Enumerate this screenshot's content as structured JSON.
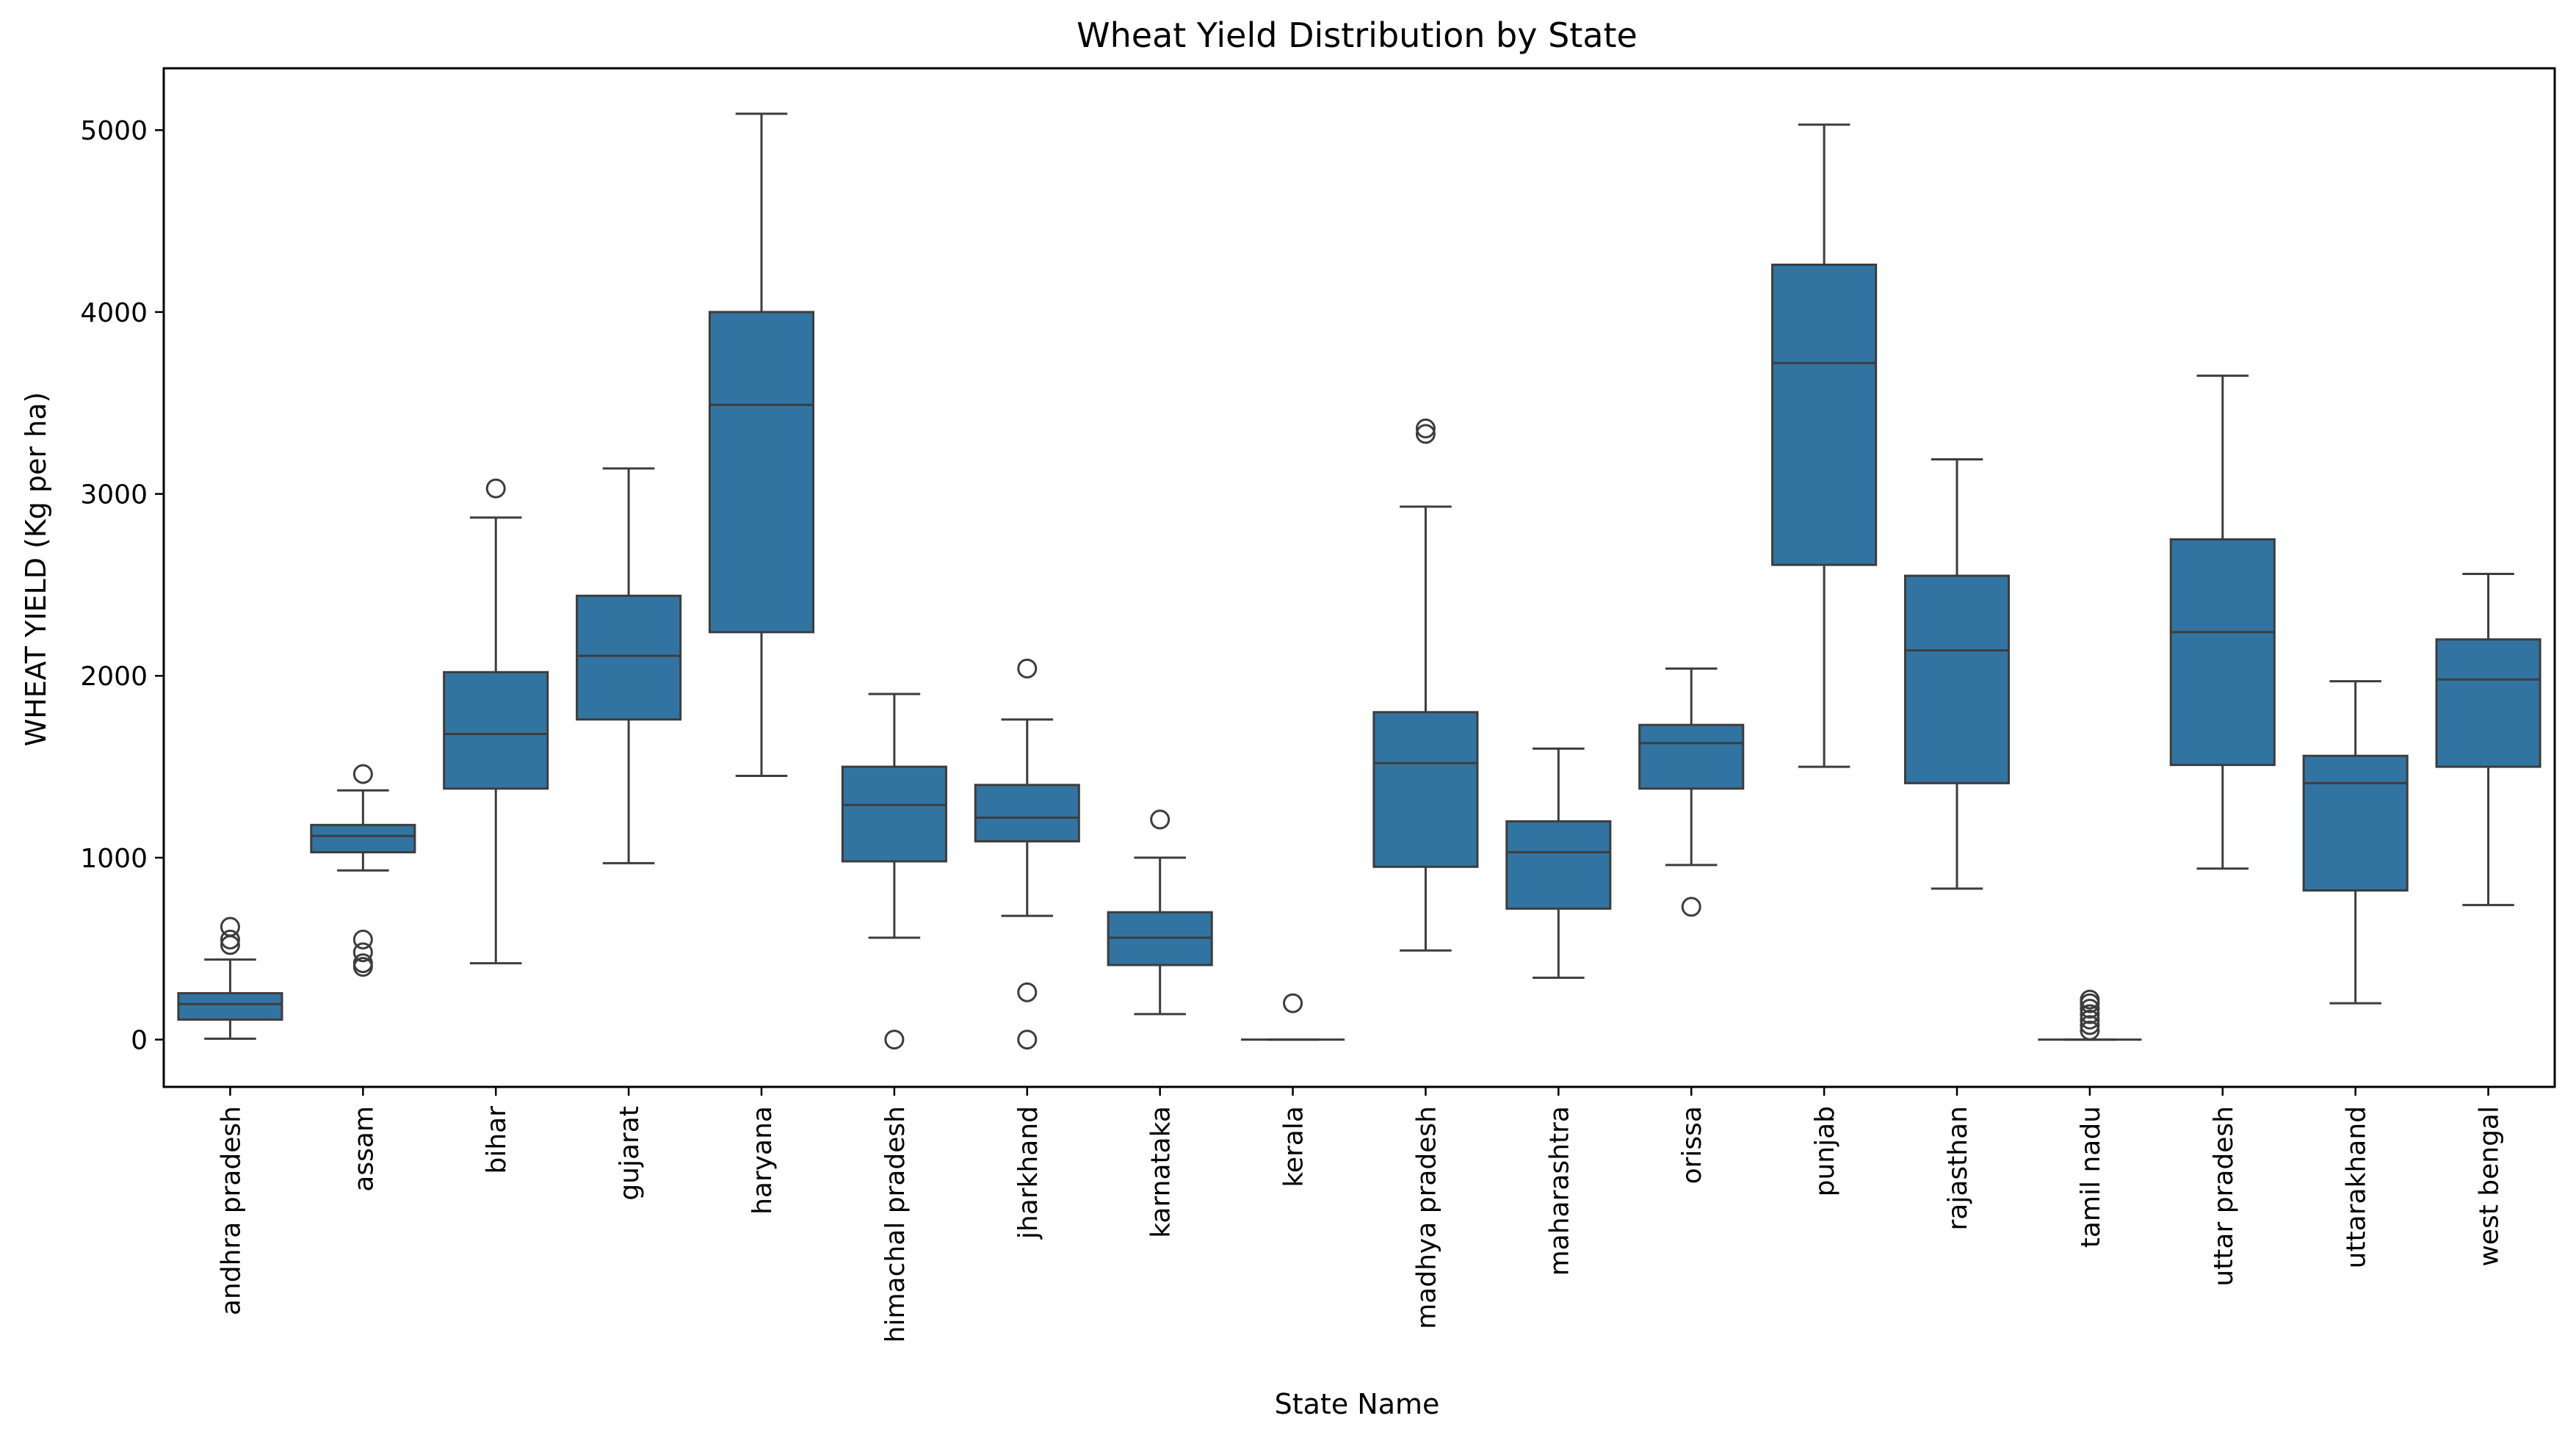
{
  "chart_data": {
    "type": "box",
    "title": "Wheat Yield Distribution by State",
    "xlabel": "State Name",
    "ylabel": "WHEAT YIELD (Kg per ha)",
    "ylim": [
      -260,
      5340
    ],
    "yticks": [
      0,
      1000,
      2000,
      3000,
      4000,
      5000
    ],
    "grid": false,
    "box_color": "#3274a1",
    "line_color": "#3d3d3d",
    "categories": [
      "andhra pradesh",
      "assam",
      "bihar",
      "gujarat",
      "haryana",
      "himachal pradesh",
      "jharkhand",
      "karnataka",
      "kerala",
      "madhya pradesh",
      "maharashtra",
      "orissa",
      "punjab",
      "rajasthan",
      "tamil nadu",
      "uttar pradesh",
      "uttarakhand",
      "west bengal"
    ],
    "boxes": [
      {
        "category": "andhra pradesh",
        "whislo": 5,
        "q1": 110,
        "med": 195,
        "q3": 255,
        "whishi": 440,
        "fliers": [
          520,
          550,
          620
        ]
      },
      {
        "category": "assam",
        "whislo": 930,
        "q1": 1030,
        "med": 1120,
        "q3": 1180,
        "whishi": 1370,
        "fliers": [
          1460,
          400,
          420,
          480,
          550
        ]
      },
      {
        "category": "bihar",
        "whislo": 420,
        "q1": 1380,
        "med": 1680,
        "q3": 2020,
        "whishi": 2870,
        "fliers": [
          3030
        ]
      },
      {
        "category": "gujarat",
        "whislo": 970,
        "q1": 1760,
        "med": 2110,
        "q3": 2440,
        "whishi": 3140,
        "fliers": []
      },
      {
        "category": "haryana",
        "whislo": 1450,
        "q1": 2240,
        "med": 3490,
        "q3": 4000,
        "whishi": 5090,
        "fliers": []
      },
      {
        "category": "himachal pradesh",
        "whislo": 560,
        "q1": 980,
        "med": 1290,
        "q3": 1500,
        "whishi": 1900,
        "fliers": [
          0
        ]
      },
      {
        "category": "jharkhand",
        "whislo": 680,
        "q1": 1090,
        "med": 1220,
        "q3": 1400,
        "whishi": 1760,
        "fliers": [
          2040,
          260,
          0
        ]
      },
      {
        "category": "karnataka",
        "whislo": 140,
        "q1": 410,
        "med": 560,
        "q3": 700,
        "whishi": 1000,
        "fliers": [
          1210
        ]
      },
      {
        "category": "kerala",
        "whislo": 0,
        "q1": 0,
        "med": 0,
        "q3": 0,
        "whishi": 0,
        "fliers": [
          200
        ]
      },
      {
        "category": "madhya pradesh",
        "whislo": 490,
        "q1": 950,
        "med": 1520,
        "q3": 1800,
        "whishi": 2930,
        "fliers": [
          3330,
          3360
        ]
      },
      {
        "category": "maharashtra",
        "whislo": 340,
        "q1": 720,
        "med": 1030,
        "q3": 1200,
        "whishi": 1600,
        "fliers": []
      },
      {
        "category": "orissa",
        "whislo": 960,
        "q1": 1380,
        "med": 1630,
        "q3": 1730,
        "whishi": 2040,
        "fliers": [
          730
        ]
      },
      {
        "category": "punjab",
        "whislo": 1500,
        "q1": 2610,
        "med": 3720,
        "q3": 4260,
        "whishi": 5030,
        "fliers": []
      },
      {
        "category": "rajasthan",
        "whislo": 830,
        "q1": 1410,
        "med": 2140,
        "q3": 2550,
        "whishi": 3190,
        "fliers": []
      },
      {
        "category": "tamil nadu",
        "whislo": 0,
        "q1": 0,
        "med": 0,
        "q3": 0,
        "whishi": 0,
        "fliers": [
          50,
          80,
          110,
          140,
          170,
          200,
          220
        ]
      },
      {
        "category": "uttar pradesh",
        "whislo": 940,
        "q1": 1510,
        "med": 2240,
        "q3": 2750,
        "whishi": 3650,
        "fliers": []
      },
      {
        "category": "uttarakhand",
        "whislo": 200,
        "q1": 820,
        "med": 1410,
        "q3": 1560,
        "whishi": 1970,
        "fliers": []
      },
      {
        "category": "west bengal",
        "whislo": 740,
        "q1": 1500,
        "med": 1980,
        "q3": 2200,
        "whishi": 2560,
        "fliers": []
      }
    ]
  }
}
